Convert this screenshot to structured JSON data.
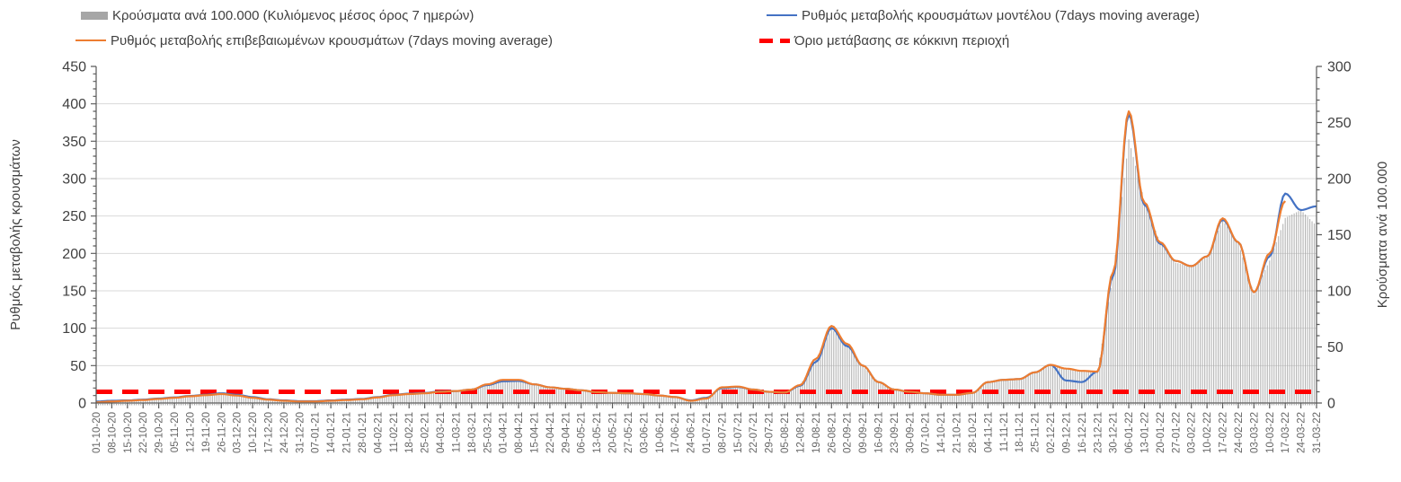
{
  "legend": {
    "items": [
      {
        "label": "Κρούσματα ανά 100.000 (Κυλιόμενος μέσος όρος 7 ημερών)",
        "swatch": "bar",
        "color": "#a6a6a6"
      },
      {
        "label": "Ρυθμός μεταβολής κρουσμάτων μοντέλου (7days moving average)",
        "swatch": "line",
        "color": "#4472c4"
      },
      {
        "label": "Ρυθμός μεταβολής επιβεβαιωμένων κρουσμάτων (7days moving average)",
        "swatch": "line",
        "color": "#ed7d31"
      },
      {
        "label": "Όριο μετάβασης σε κόκκινη περιοχή",
        "swatch": "dashed-line",
        "color": "#ff0000"
      }
    ]
  },
  "chart_data": {
    "type": "combo",
    "grid": true,
    "legend_position": "top",
    "left_axis": {
      "label": "Ρυθμός μεταβολής κρουσμάτων",
      "min": 0,
      "max": 450,
      "step": 50,
      "ticks": [
        0,
        50,
        100,
        150,
        200,
        250,
        300,
        350,
        400,
        450
      ]
    },
    "right_axis": {
      "label": "Κρούσματα ανά 100.000",
      "min": 0,
      "max": 300,
      "step": 50,
      "ticks": [
        0,
        50,
        100,
        150,
        200,
        250,
        300
      ]
    },
    "categories": [
      "01-10-20",
      "08-10-20",
      "15-10-20",
      "22-10-20",
      "29-10-20",
      "05-11-20",
      "12-11-20",
      "19-11-20",
      "26-11-20",
      "03-12-20",
      "10-12-20",
      "17-12-20",
      "24-12-20",
      "31-12-20",
      "07-01-21",
      "14-01-21",
      "21-01-21",
      "28-01-21",
      "04-02-21",
      "11-02-21",
      "18-02-21",
      "25-02-21",
      "04-03-21",
      "11-03-21",
      "18-03-21",
      "25-03-21",
      "01-04-21",
      "08-04-21",
      "15-04-21",
      "22-04-21",
      "29-04-21",
      "06-05-21",
      "13-05-21",
      "20-05-21",
      "27-05-21",
      "03-06-21",
      "10-06-21",
      "17-06-21",
      "24-06-21",
      "01-07-21",
      "08-07-21",
      "15-07-21",
      "22-07-21",
      "29-07-21",
      "05-08-21",
      "12-08-21",
      "19-08-21",
      "26-08-21",
      "02-09-21",
      "09-09-21",
      "16-09-21",
      "23-09-21",
      "30-09-21",
      "07-10-21",
      "14-10-21",
      "21-10-21",
      "28-10-21",
      "04-11-21",
      "11-11-21",
      "18-11-21",
      "25-11-21",
      "02-12-21",
      "09-12-21",
      "16-12-21",
      "23-12-21",
      "30-12-21",
      "06-01-22",
      "13-01-22",
      "20-01-22",
      "27-01-22",
      "03-02-22",
      "10-02-22",
      "17-02-22",
      "24-02-22",
      "03-03-22",
      "10-03-22",
      "17-03-22",
      "24-03-22",
      "31-03-22"
    ],
    "series": [
      {
        "name": "Κρούσματα ανά 100.000 (Κυλιόμενος μέσος όρος 7 ημερών)",
        "type": "bar",
        "axis": "right",
        "color": "#a8a8a8",
        "values": [
          2,
          2.5,
          3,
          3.5,
          4.5,
          5.5,
          6.5,
          7.5,
          8.5,
          6.5,
          4.5,
          3,
          2,
          1.5,
          1.5,
          2,
          2.5,
          3.5,
          5,
          7,
          8,
          8.5,
          10,
          10.5,
          12,
          16.5,
          20.5,
          20.5,
          16.5,
          14,
          12.5,
          11,
          9.5,
          9,
          8.5,
          8,
          6.5,
          5,
          2,
          3.5,
          14,
          15,
          12.5,
          10,
          9.5,
          16,
          39,
          66,
          52,
          33,
          19,
          12,
          10,
          8.5,
          7.5,
          7.5,
          9,
          18.5,
          20.5,
          21.5,
          27,
          34,
          31,
          29,
          28,
          115,
          235,
          180,
          143,
          125,
          122,
          130,
          163,
          143,
          97,
          127,
          165,
          172,
          158
        ]
      },
      {
        "name": "Ρυθμός μεταβολής κρουσμάτων μοντέλου (7days moving average)",
        "type": "line",
        "axis": "left",
        "color": "#4472c4",
        "values": [
          2,
          3,
          3.5,
          4.5,
          6,
          7.5,
          9.5,
          11,
          13,
          11,
          8,
          5,
          3.5,
          2.5,
          2.5,
          3.5,
          4.5,
          5.5,
          8,
          11,
          12.5,
          13.5,
          15.5,
          16,
          18,
          24,
          29,
          29.5,
          25,
          21,
          19,
          17,
          14.5,
          13.5,
          13,
          12,
          10,
          8,
          3.5,
          7,
          20,
          21.5,
          18,
          15,
          14,
          23,
          55,
          100,
          76,
          50,
          28,
          18,
          15,
          13,
          11,
          11,
          13.5,
          28,
          31,
          32,
          41,
          51,
          30,
          28,
          42,
          170,
          386,
          265,
          213,
          190,
          183,
          196,
          245,
          215,
          148,
          196,
          280,
          258,
          263
        ]
      },
      {
        "name": "Ρυθμός μεταβολής επιβεβαιωμένων κρουσμάτων (7days moving average)",
        "type": "line",
        "axis": "left",
        "color": "#ed7d31",
        "values": [
          1,
          2,
          3,
          4,
          5.5,
          7,
          9,
          10.5,
          12,
          10,
          7,
          4.5,
          3,
          2,
          2,
          3,
          4,
          5,
          7.5,
          10.5,
          12,
          13,
          15,
          16,
          18,
          25,
          31,
          31,
          25,
          21,
          19,
          17,
          14.5,
          13.5,
          13,
          12,
          10,
          8,
          3,
          6,
          21,
          22,
          18,
          15,
          14,
          24,
          59,
          103,
          79,
          50,
          28,
          18,
          15,
          13,
          11,
          11,
          13.5,
          28,
          31,
          32,
          41,
          51,
          46,
          43,
          42,
          175,
          390,
          268,
          215,
          190,
          183,
          196,
          247,
          215,
          148,
          200,
          270,
          null,
          null
        ]
      },
      {
        "name": "Όριο μετάβασης σε κόκκινη περιοχή",
        "type": "threshold-line",
        "axis": "right",
        "color": "#ff0000",
        "value": 10
      }
    ]
  }
}
